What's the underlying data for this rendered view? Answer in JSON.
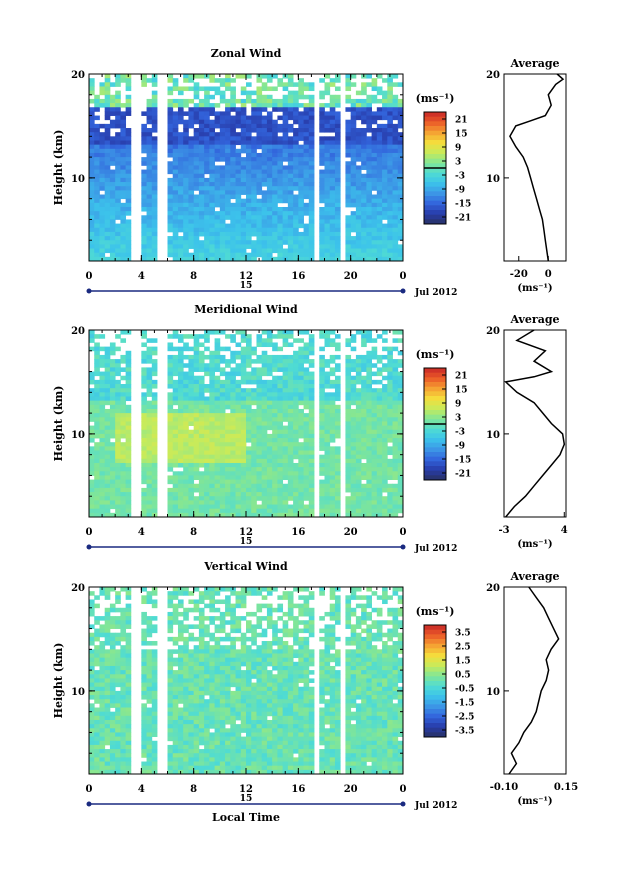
{
  "figure": {
    "date_label": "Jul 2012",
    "day_label": "15",
    "xlabel_bottom": "Local Time",
    "ylabel": "Height (km)",
    "unit_label": "(ms⁻¹)",
    "average_title": "Average"
  },
  "chart_data": [
    {
      "type": "heatmap",
      "title": "Zonal Wind",
      "ylabel": "Height (km)",
      "x_ticks": [
        "0",
        "4",
        "8",
        "12",
        "16",
        "20",
        "0"
      ],
      "xlim": [
        0,
        24
      ],
      "y_ticks": [
        "20",
        "10"
      ],
      "ylim": [
        2,
        20
      ],
      "colorbar": {
        "ticks": [
          "21",
          "15",
          "9",
          "3",
          "-3",
          "-9",
          "-15",
          "-21"
        ],
        "range": [
          -24,
          24
        ]
      },
      "profile": {
        "title": "Average",
        "xlabel": "(ms⁻¹)",
        "x_ticks": [
          "-20",
          "0"
        ],
        "xlim": [
          -30,
          12
        ],
        "heights": [
          2,
          3,
          4,
          5,
          6,
          7,
          8,
          9,
          10,
          11,
          12,
          13,
          14,
          15,
          15.5,
          16,
          17,
          18,
          19,
          19.5,
          20
        ],
        "values": [
          0,
          -1,
          -2,
          -3,
          -4,
          -6,
          -8,
          -10,
          -12,
          -14,
          -17,
          -22,
          -26,
          -22,
          -12,
          -2,
          2,
          0,
          5,
          10,
          6
        ]
      }
    },
    {
      "type": "heatmap",
      "title": "Meridional Wind",
      "ylabel": "Height (km)",
      "x_ticks": [
        "0",
        "4",
        "8",
        "12",
        "16",
        "20",
        "0"
      ],
      "xlim": [
        0,
        24
      ],
      "y_ticks": [
        "20",
        "10"
      ],
      "ylim": [
        2,
        20
      ],
      "colorbar": {
        "ticks": [
          "21",
          "15",
          "9",
          "3",
          "-3",
          "-9",
          "-15",
          "-21"
        ],
        "range": [
          -24,
          24
        ]
      },
      "profile": {
        "title": "Average",
        "xlabel": "(ms⁻¹)",
        "x_ticks": [
          "-3",
          "4"
        ],
        "xlim": [
          -3,
          4.2
        ],
        "heights": [
          2,
          3,
          4,
          5,
          6,
          7,
          8,
          9,
          10,
          11,
          12,
          13,
          14,
          15,
          15.5,
          16,
          17,
          18,
          19,
          20
        ],
        "values": [
          -2.8,
          -1.8,
          -0.5,
          0.5,
          1.5,
          2.5,
          3.5,
          4.0,
          3.8,
          2.5,
          1.5,
          0.5,
          -1.5,
          -2.8,
          0.5,
          2.5,
          0.5,
          1.8,
          -1.5,
          0.5
        ]
      }
    },
    {
      "type": "heatmap",
      "title": "Vertical Wind",
      "ylabel": "Height (km)",
      "x_ticks": [
        "0",
        "4",
        "8",
        "12",
        "16",
        "20",
        "0"
      ],
      "xlim": [
        0,
        24
      ],
      "y_ticks": [
        "20",
        "10"
      ],
      "ylim": [
        2,
        20
      ],
      "xlabel": "Local Time",
      "colorbar": {
        "ticks": [
          "3.5",
          "2.5",
          "1.5",
          "0.5",
          "-0.5",
          "-1.5",
          "-2.5",
          "-3.5"
        ],
        "range": [
          -4,
          4
        ]
      },
      "profile": {
        "title": "Average",
        "xlabel": "(ms⁻¹)",
        "x_ticks": [
          "-0.10",
          "0.15"
        ],
        "xlim": [
          -0.1,
          0.15
        ],
        "heights": [
          2,
          3,
          4,
          5,
          6,
          7,
          8,
          9,
          10,
          11,
          12,
          13,
          14,
          15,
          16,
          17,
          18,
          19,
          20
        ],
        "values": [
          -0.08,
          -0.05,
          -0.07,
          -0.04,
          -0.02,
          0.01,
          0.03,
          0.04,
          0.05,
          0.07,
          0.08,
          0.07,
          0.09,
          0.12,
          0.1,
          0.08,
          0.06,
          0.03,
          0.0
        ]
      }
    }
  ]
}
